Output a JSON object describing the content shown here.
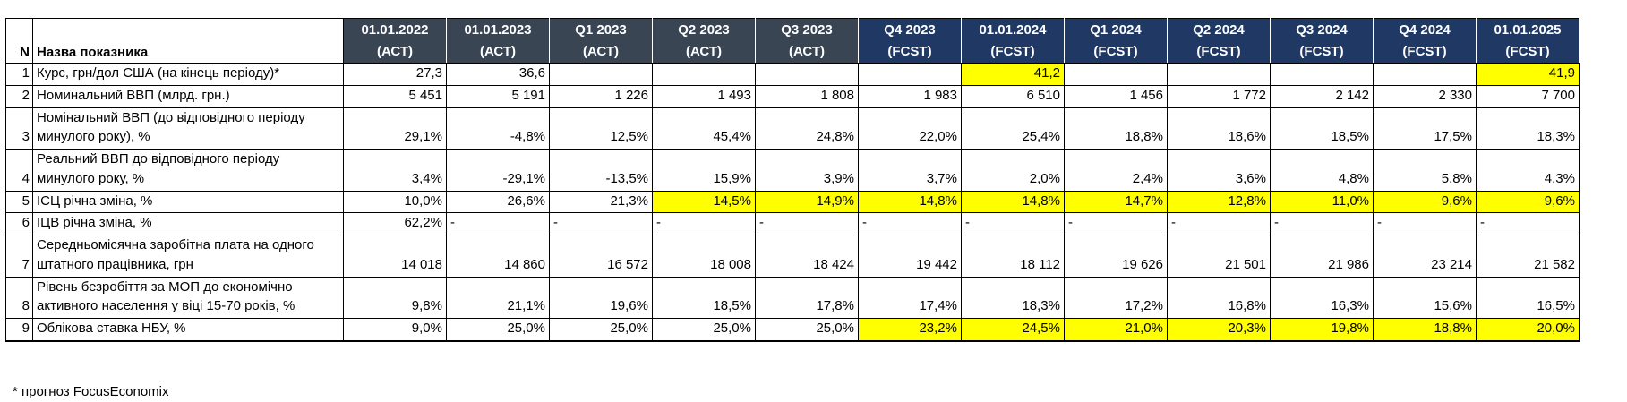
{
  "header": {
    "n_label": "N",
    "name_label": "Назва показника",
    "columns": [
      {
        "period": "01.01.2022",
        "type": "(АСТ)",
        "kind": "act"
      },
      {
        "period": "01.01.2023",
        "type": "(АСТ)",
        "kind": "act"
      },
      {
        "period": "Q1 2023",
        "type": "(АСТ)",
        "kind": "act"
      },
      {
        "period": "Q2 2023",
        "type": "(АСТ)",
        "kind": "act"
      },
      {
        "period": "Q3 2023",
        "type": "(АСТ)",
        "kind": "act"
      },
      {
        "period": "Q4 2023",
        "type": "(FCST)",
        "kind": "fcst"
      },
      {
        "period": "01.01.2024",
        "type": "(FCST)",
        "kind": "fcst"
      },
      {
        "period": "Q1 2024",
        "type": "(FCST)",
        "kind": "fcst"
      },
      {
        "period": "Q2 2024",
        "type": "(FCST)",
        "kind": "fcst"
      },
      {
        "period": "Q3 2024",
        "type": "(FCST)",
        "kind": "fcst"
      },
      {
        "period": "Q4 2024",
        "type": "(FCST)",
        "kind": "fcst"
      },
      {
        "period": "01.01.2025",
        "type": "(FCST)",
        "kind": "fcst"
      }
    ]
  },
  "rows": [
    {
      "n": "1",
      "label": "Курс, грн/дол США (на кінець періоду)*",
      "tall": false,
      "values": [
        "27,3",
        "36,6",
        "",
        "",
        "",
        "",
        "41,2",
        "",
        "",
        "",
        "",
        "41,9"
      ],
      "highlight": [
        6,
        11
      ]
    },
    {
      "n": "2",
      "label": "Номинальний ВВП (млрд. грн.)",
      "tall": false,
      "values": [
        "5 451",
        "5 191",
        "1 226",
        "1 493",
        "1 808",
        "1 983",
        "6 510",
        "1 456",
        "1 772",
        "2 142",
        "2 330",
        "7 700"
      ],
      "highlight": []
    },
    {
      "n": "3",
      "label": "Номінальний ВВП (до відповідного періоду минулого року), %",
      "tall": true,
      "values": [
        "29,1%",
        "-4,8%",
        "12,5%",
        "45,4%",
        "24,8%",
        "22,0%",
        "25,4%",
        "18,8%",
        "18,6%",
        "18,5%",
        "17,5%",
        "18,3%"
      ],
      "highlight": []
    },
    {
      "n": "4",
      "label": "Реальний ВВП до відповідного періоду минулого року, %",
      "tall": true,
      "values": [
        "3,4%",
        "-29,1%",
        "-13,5%",
        "15,9%",
        "3,9%",
        "3,7%",
        "2,0%",
        "2,4%",
        "3,6%",
        "4,8%",
        "5,8%",
        "4,3%"
      ],
      "highlight": []
    },
    {
      "n": "5",
      "label": "ІСЦ річна зміна, %",
      "tall": false,
      "values": [
        "10,0%",
        "26,6%",
        "21,3%",
        "14,5%",
        "14,9%",
        "14,8%",
        "14,8%",
        "14,7%",
        "12,8%",
        "11,0%",
        "9,6%",
        "9,6%"
      ],
      "highlight": [
        3,
        4,
        5,
        6,
        7,
        8,
        9,
        10,
        11
      ]
    },
    {
      "n": "6",
      "label": "ІЦВ річна зміна, %",
      "tall": false,
      "values": [
        "62,2%",
        "-",
        "-",
        "-",
        "-",
        "-",
        "-",
        "-",
        "-",
        "-",
        "-",
        "-"
      ],
      "highlight": []
    },
    {
      "n": "7",
      "label": "Середньомісячна заробітна плата на одного штатного працівника, грн",
      "tall": true,
      "values": [
        "14 018",
        "14 860",
        "16 572",
        "18 008",
        "18 424",
        "19 442",
        "18 112",
        "19 626",
        "21 501",
        "21 986",
        "23 214",
        "21 582"
      ],
      "highlight": []
    },
    {
      "n": "8",
      "label": "Рівень безробіття за МОП до економічно активного населення у віці 15-70 років, %",
      "tall": true,
      "values": [
        "9,8%",
        "21,1%",
        "19,6%",
        "18,5%",
        "17,8%",
        "17,4%",
        "18,3%",
        "17,2%",
        "16,8%",
        "16,3%",
        "15,6%",
        "16,5%"
      ],
      "highlight": []
    },
    {
      "n": "9",
      "label": "Облікова ставка НБУ, %",
      "tall": false,
      "values": [
        "9,0%",
        "25,0%",
        "25,0%",
        "25,0%",
        "25,0%",
        "23,2%",
        "24,5%",
        "21,0%",
        "20,3%",
        "19,8%",
        "18,8%",
        "20,0%"
      ],
      "highlight": [
        5,
        6,
        7,
        8,
        9,
        10,
        11
      ]
    }
  ],
  "footnote": "* прогноз FocusEconomix",
  "colors": {
    "act_header": "#3A4554",
    "fcst_header": "#1F3864",
    "highlight": "#FFFF00"
  }
}
